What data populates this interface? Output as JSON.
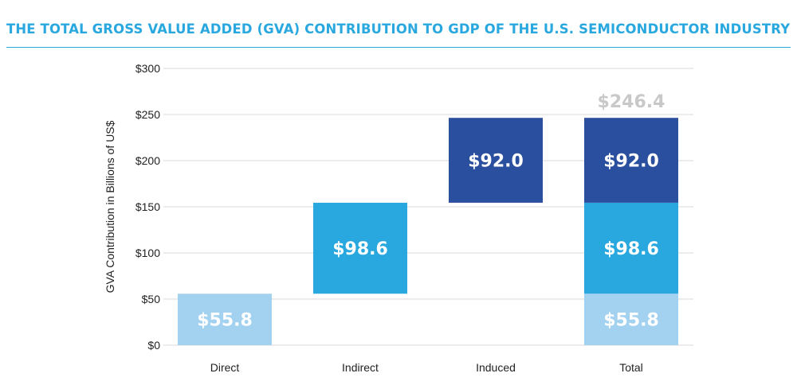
{
  "chart_data": {
    "type": "bar",
    "title": "THE TOTAL GROSS VALUE ADDED (GVA) CONTRIBUTION TO GDP OF THE U.S. SEMICONDUCTOR INDUSTRY",
    "ylabel": "GVA Contribution in Billions of US$",
    "xlabel": "",
    "ylim": [
      0,
      300
    ],
    "yticks": [
      0,
      50,
      100,
      150,
      200,
      250,
      300
    ],
    "ytick_labels": [
      "$0",
      "$50",
      "$100",
      "$150",
      "$200",
      "$250",
      "$300"
    ],
    "categories": [
      "Direct",
      "Indirect",
      "Induced",
      "Total"
    ],
    "bars": [
      {
        "category": "Direct",
        "segments": [
          {
            "component": "Direct",
            "base": 0,
            "value": 55.8,
            "label": "$55.8"
          }
        ]
      },
      {
        "category": "Indirect",
        "segments": [
          {
            "component": "Indirect",
            "base": 55.8,
            "value": 98.6,
            "label": "$98.6"
          }
        ]
      },
      {
        "category": "Induced",
        "segments": [
          {
            "component": "Induced",
            "base": 154.4,
            "value": 92.0,
            "label": "$92.0"
          }
        ]
      },
      {
        "category": "Total",
        "segments": [
          {
            "component": "Direct",
            "base": 0,
            "value": 55.8,
            "label": "$55.8"
          },
          {
            "component": "Indirect",
            "base": 55.8,
            "value": 98.6,
            "label": "$98.6"
          },
          {
            "component": "Induced",
            "base": 154.4,
            "value": 92.0,
            "label": "$92.0"
          }
        ]
      }
    ],
    "total_value": 246.4,
    "total_label": "$246.4",
    "colors": {
      "Direct": "#a3d2f0",
      "Indirect": "#29a8df",
      "Induced": "#2b4f9f",
      "total_label": "#c8c8c8",
      "title": "#29a8df",
      "grid": "#d9d9d9"
    },
    "grid": true,
    "legend": "none"
  }
}
